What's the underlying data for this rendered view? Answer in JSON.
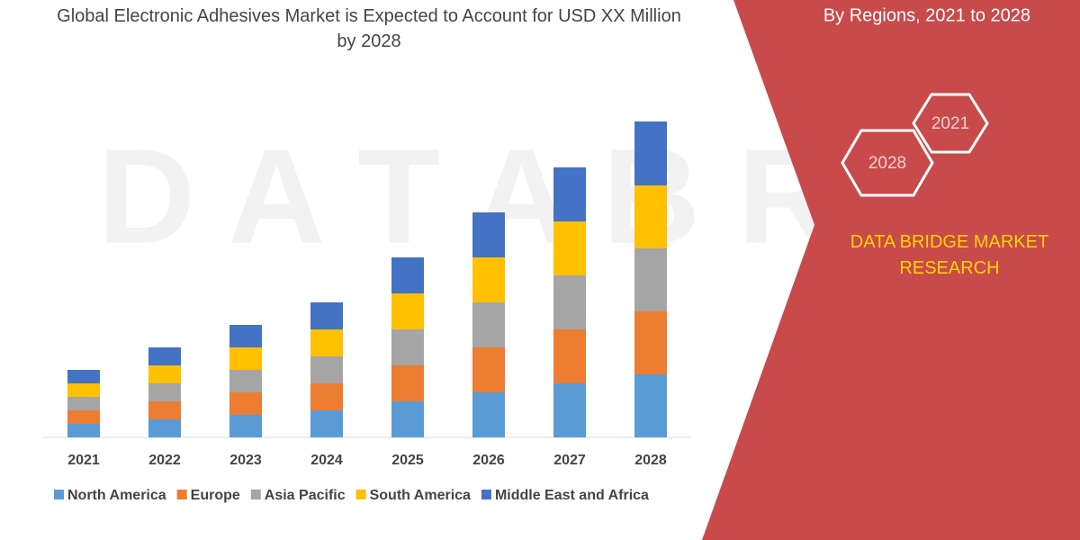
{
  "chart_data": {
    "type": "stacked_bar",
    "title": "Global Electronic Adhesives Market is Expected to Account for USD XX Million by 2028",
    "categories": [
      "2021",
      "2022",
      "2023",
      "2024",
      "2025",
      "2026",
      "2027",
      "2028"
    ],
    "series": [
      {
        "name": "North America",
        "color": "#5b9bd5",
        "values": [
          15,
          20,
          25,
          30,
          40,
          50,
          60,
          70
        ]
      },
      {
        "name": "Europe",
        "color": "#ed7d31",
        "values": [
          15,
          20,
          25,
          30,
          40,
          50,
          60,
          70
        ]
      },
      {
        "name": "Asia Pacific",
        "color": "#a5a5a5",
        "values": [
          15,
          20,
          25,
          30,
          40,
          50,
          60,
          70
        ]
      },
      {
        "name": "South America",
        "color": "#ffc000",
        "values": [
          15,
          20,
          25,
          30,
          40,
          50,
          60,
          70
        ]
      },
      {
        "name": "Middle East and Africa",
        "color": "#4472c4",
        "values": [
          15,
          20,
          25,
          30,
          40,
          50,
          60,
          71
        ]
      }
    ],
    "legend": "bottom"
  },
  "banner": {
    "subtitle": "By Regions, 2021 to 2028",
    "hex_labels": [
      "2021",
      "2028"
    ],
    "brand": "DATA BRIDGE MARKET RESEARCH",
    "logo_text": "DATA BRIDGE"
  }
}
